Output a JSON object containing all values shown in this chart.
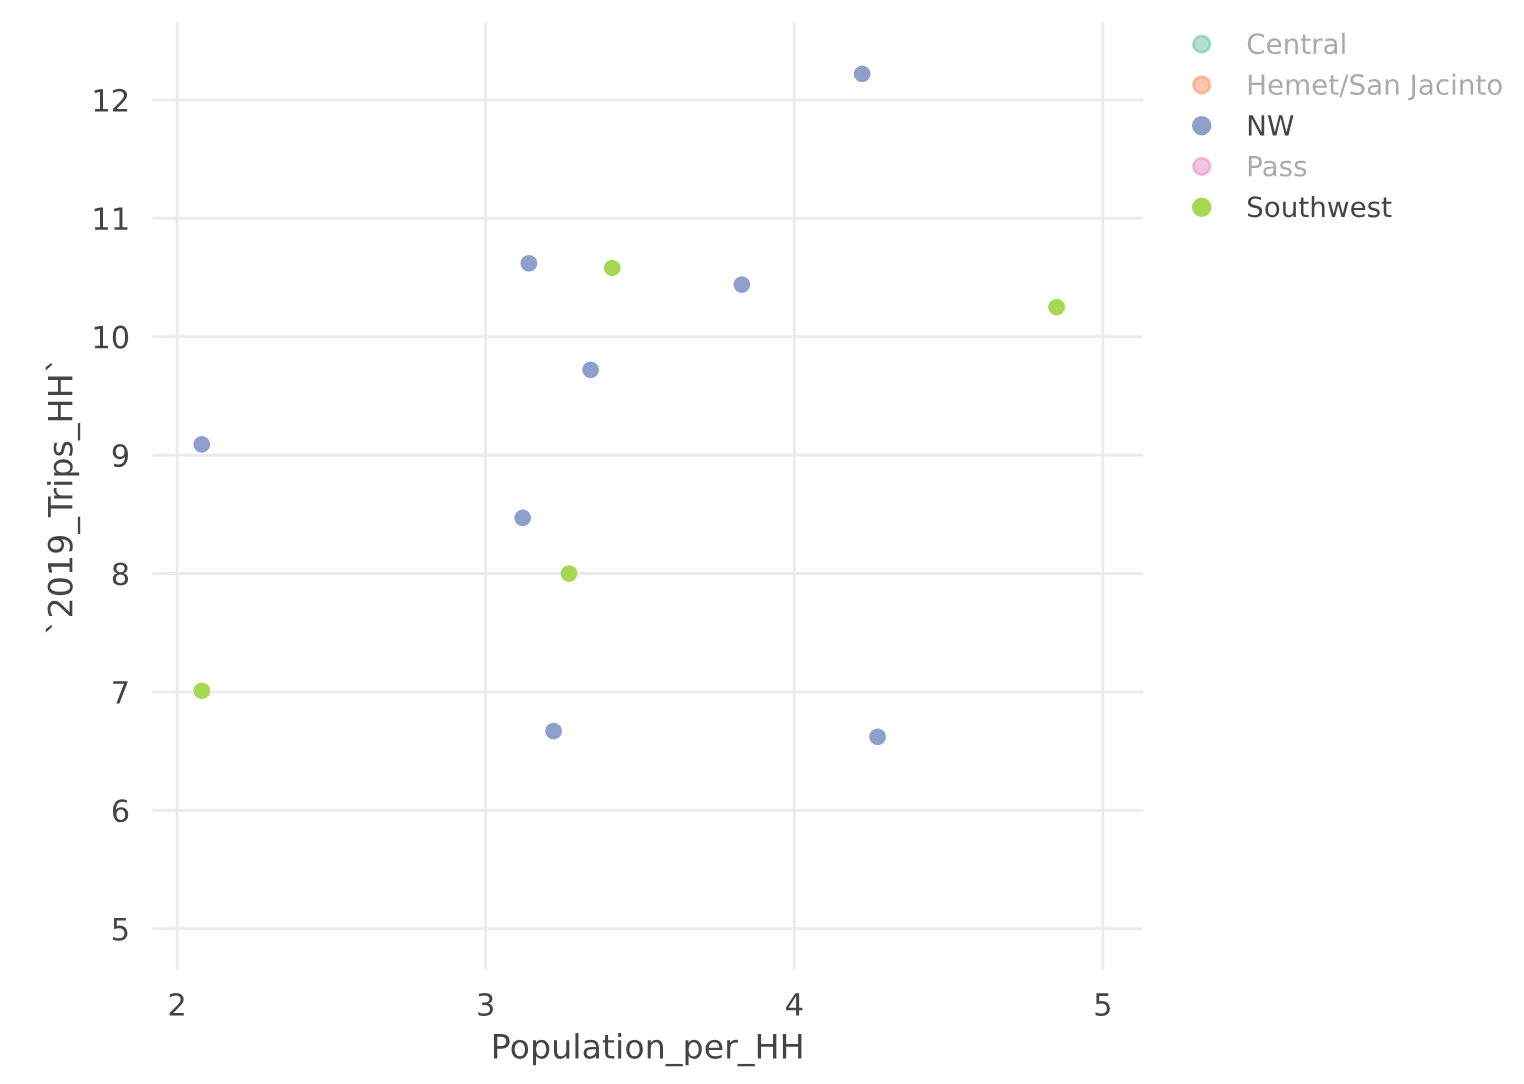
{
  "chart_data": {
    "type": "scatter",
    "xlabel": "Population_per_HH",
    "ylabel": "`2019_Trips_HH`",
    "xlim": [
      1.92,
      5.13
    ],
    "ylim": [
      4.65,
      12.66
    ],
    "xticks": [
      2,
      3,
      4,
      5
    ],
    "yticks": [
      5,
      6,
      7,
      8,
      9,
      10,
      11,
      12
    ],
    "grid": true,
    "legend": "right",
    "marker": "circle",
    "series": [
      {
        "name": "Central",
        "color": "#66c2a5"
      },
      {
        "name": "Hemet/San Jacinto",
        "color": "#fc8d62"
      },
      {
        "name": "NW",
        "color": "#8da0cb",
        "x": [
          2.08,
          3.14,
          3.34,
          3.83,
          4.22,
          3.12,
          3.22,
          4.27
        ],
        "values": [
          9.09,
          10.62,
          9.72,
          10.44,
          12.22,
          8.47,
          6.67,
          6.62
        ]
      },
      {
        "name": "Pass",
        "color": "#e78ac3"
      },
      {
        "name": "Southwest",
        "color": "#a6d854",
        "x": [
          3.41,
          4.85,
          3.27,
          2.08
        ],
        "values": [
          10.58,
          10.25,
          8.0,
          7.01
        ]
      }
    ]
  }
}
